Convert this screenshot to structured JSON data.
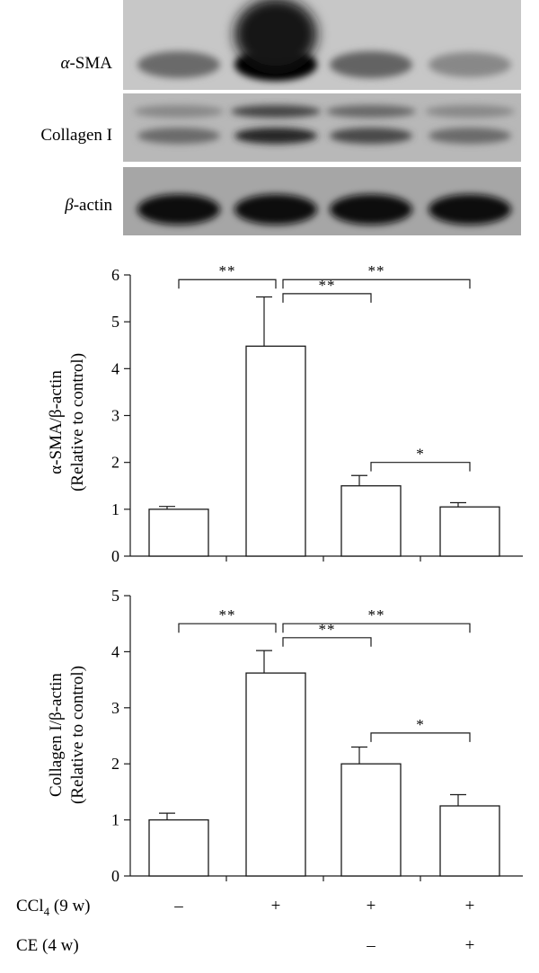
{
  "blots": [
    {
      "label": "α-SMA",
      "label_prefix": "α",
      "label_rest": "-SMA",
      "lanes": [
        0.55,
        1.0,
        0.58,
        0.42
      ],
      "background": 0.22
    },
    {
      "label": "Collagen I",
      "label_prefix": "",
      "label_rest": "Collagen I",
      "lanes": [
        0.55,
        0.85,
        0.7,
        0.55
      ],
      "background": 0.28
    },
    {
      "label": "β-actin",
      "label_prefix": "β",
      "label_rest": "-actin",
      "lanes": [
        0.95,
        0.95,
        0.95,
        0.95
      ],
      "background": 0.35
    }
  ],
  "chart_data": [
    {
      "type": "bar",
      "ylabel_line1": "α-SMA/β-actin",
      "ylabel_line2": "(Relative to control)",
      "ylim": [
        0,
        6
      ],
      "yticks": [
        "0",
        "1",
        "2",
        "3",
        "4",
        "5",
        "6"
      ],
      "values": [
        1.0,
        4.48,
        1.5,
        1.05
      ],
      "errors": [
        0.06,
        1.05,
        0.22,
        0.09
      ],
      "significance": [
        {
          "from": 0,
          "to": 1,
          "label": "**",
          "level": 5.9
        },
        {
          "from": 1,
          "to": 2,
          "label": "**",
          "level": 5.6
        },
        {
          "from": 1,
          "to": 3,
          "label": "**",
          "level": 5.9
        },
        {
          "from": 2,
          "to": 3,
          "label": "*",
          "level": 2.0
        }
      ]
    },
    {
      "type": "bar",
      "ylabel_line1": "Collagen I/β-actin",
      "ylabel_line2": "(Relative to control)",
      "ylim": [
        0,
        5
      ],
      "yticks": [
        "0",
        "1",
        "2",
        "3",
        "4",
        "5"
      ],
      "values": [
        1.0,
        3.62,
        2.0,
        1.25
      ],
      "errors": [
        0.12,
        0.4,
        0.3,
        0.2
      ],
      "significance": [
        {
          "from": 0,
          "to": 1,
          "label": "**",
          "level": 4.5
        },
        {
          "from": 1,
          "to": 2,
          "label": "**",
          "level": 4.25
        },
        {
          "from": 1,
          "to": 3,
          "label": "**",
          "level": 4.5
        },
        {
          "from": 2,
          "to": 3,
          "label": "*",
          "level": 2.55
        }
      ]
    }
  ],
  "conditions": [
    {
      "label": "CCl",
      "subscript": "4",
      "suffix": " (9 w)",
      "values": [
        "–",
        "+",
        "+",
        "+"
      ]
    },
    {
      "label": "CE (4 w)",
      "subscript": "",
      "suffix": "",
      "values": [
        "",
        "",
        "–",
        "+"
      ]
    }
  ]
}
